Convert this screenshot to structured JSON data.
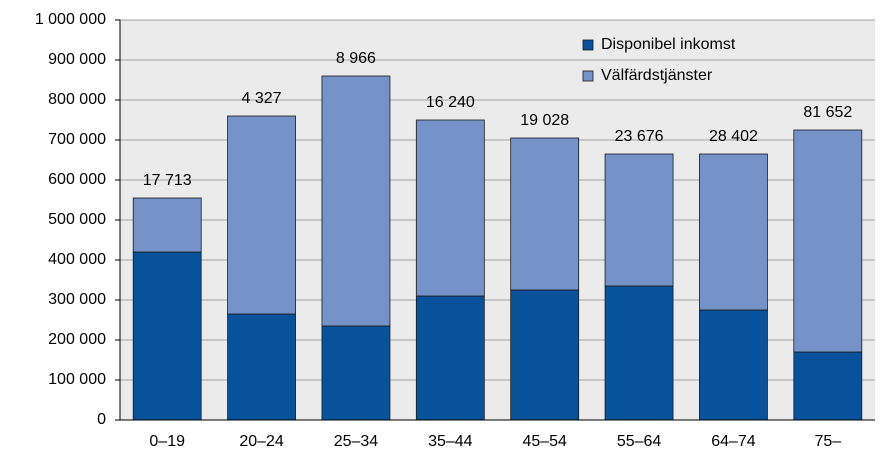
{
  "chart_data": {
    "type": "stacked_bar",
    "categories": [
      "0–19",
      "20–24",
      "25–34",
      "35–44",
      "45–54",
      "55–64",
      "64–74",
      "75–"
    ],
    "series": [
      {
        "name": "Disponibel inkomst",
        "color": "#08529c",
        "values": [
          420000,
          265000,
          235000,
          310000,
          325000,
          335000,
          275000,
          170000
        ]
      },
      {
        "name": "Välfärdstjänster",
        "color": "#7593c8",
        "values": [
          135000,
          495000,
          625000,
          440000,
          380000,
          330000,
          390000,
          555000
        ]
      }
    ],
    "annotations": [
      "17 713",
      "4 327",
      "8 966",
      "16 240",
      "19 028",
      "23 676",
      "28 402",
      "81 652"
    ],
    "ylim": [
      0,
      1000000
    ],
    "yticks": [
      0,
      {
        "value": 100000,
        "label": "100 000"
      },
      {
        "value": 200000,
        "label": "200 000"
      },
      {
        "value": 300000,
        "label": "300 000"
      },
      {
        "value": 400000,
        "label": "400 000"
      },
      {
        "value": 500000,
        "label": "500 000"
      },
      {
        "value": 600000,
        "label": "600 000"
      },
      {
        "value": 700000,
        "label": "700 000"
      },
      {
        "value": 800000,
        "label": "800 000"
      },
      {
        "value": 900000,
        "label": "900 000"
      },
      {
        "value": 1000000,
        "label": "1 000 000"
      }
    ],
    "grid": true,
    "legend": "top-right"
  }
}
